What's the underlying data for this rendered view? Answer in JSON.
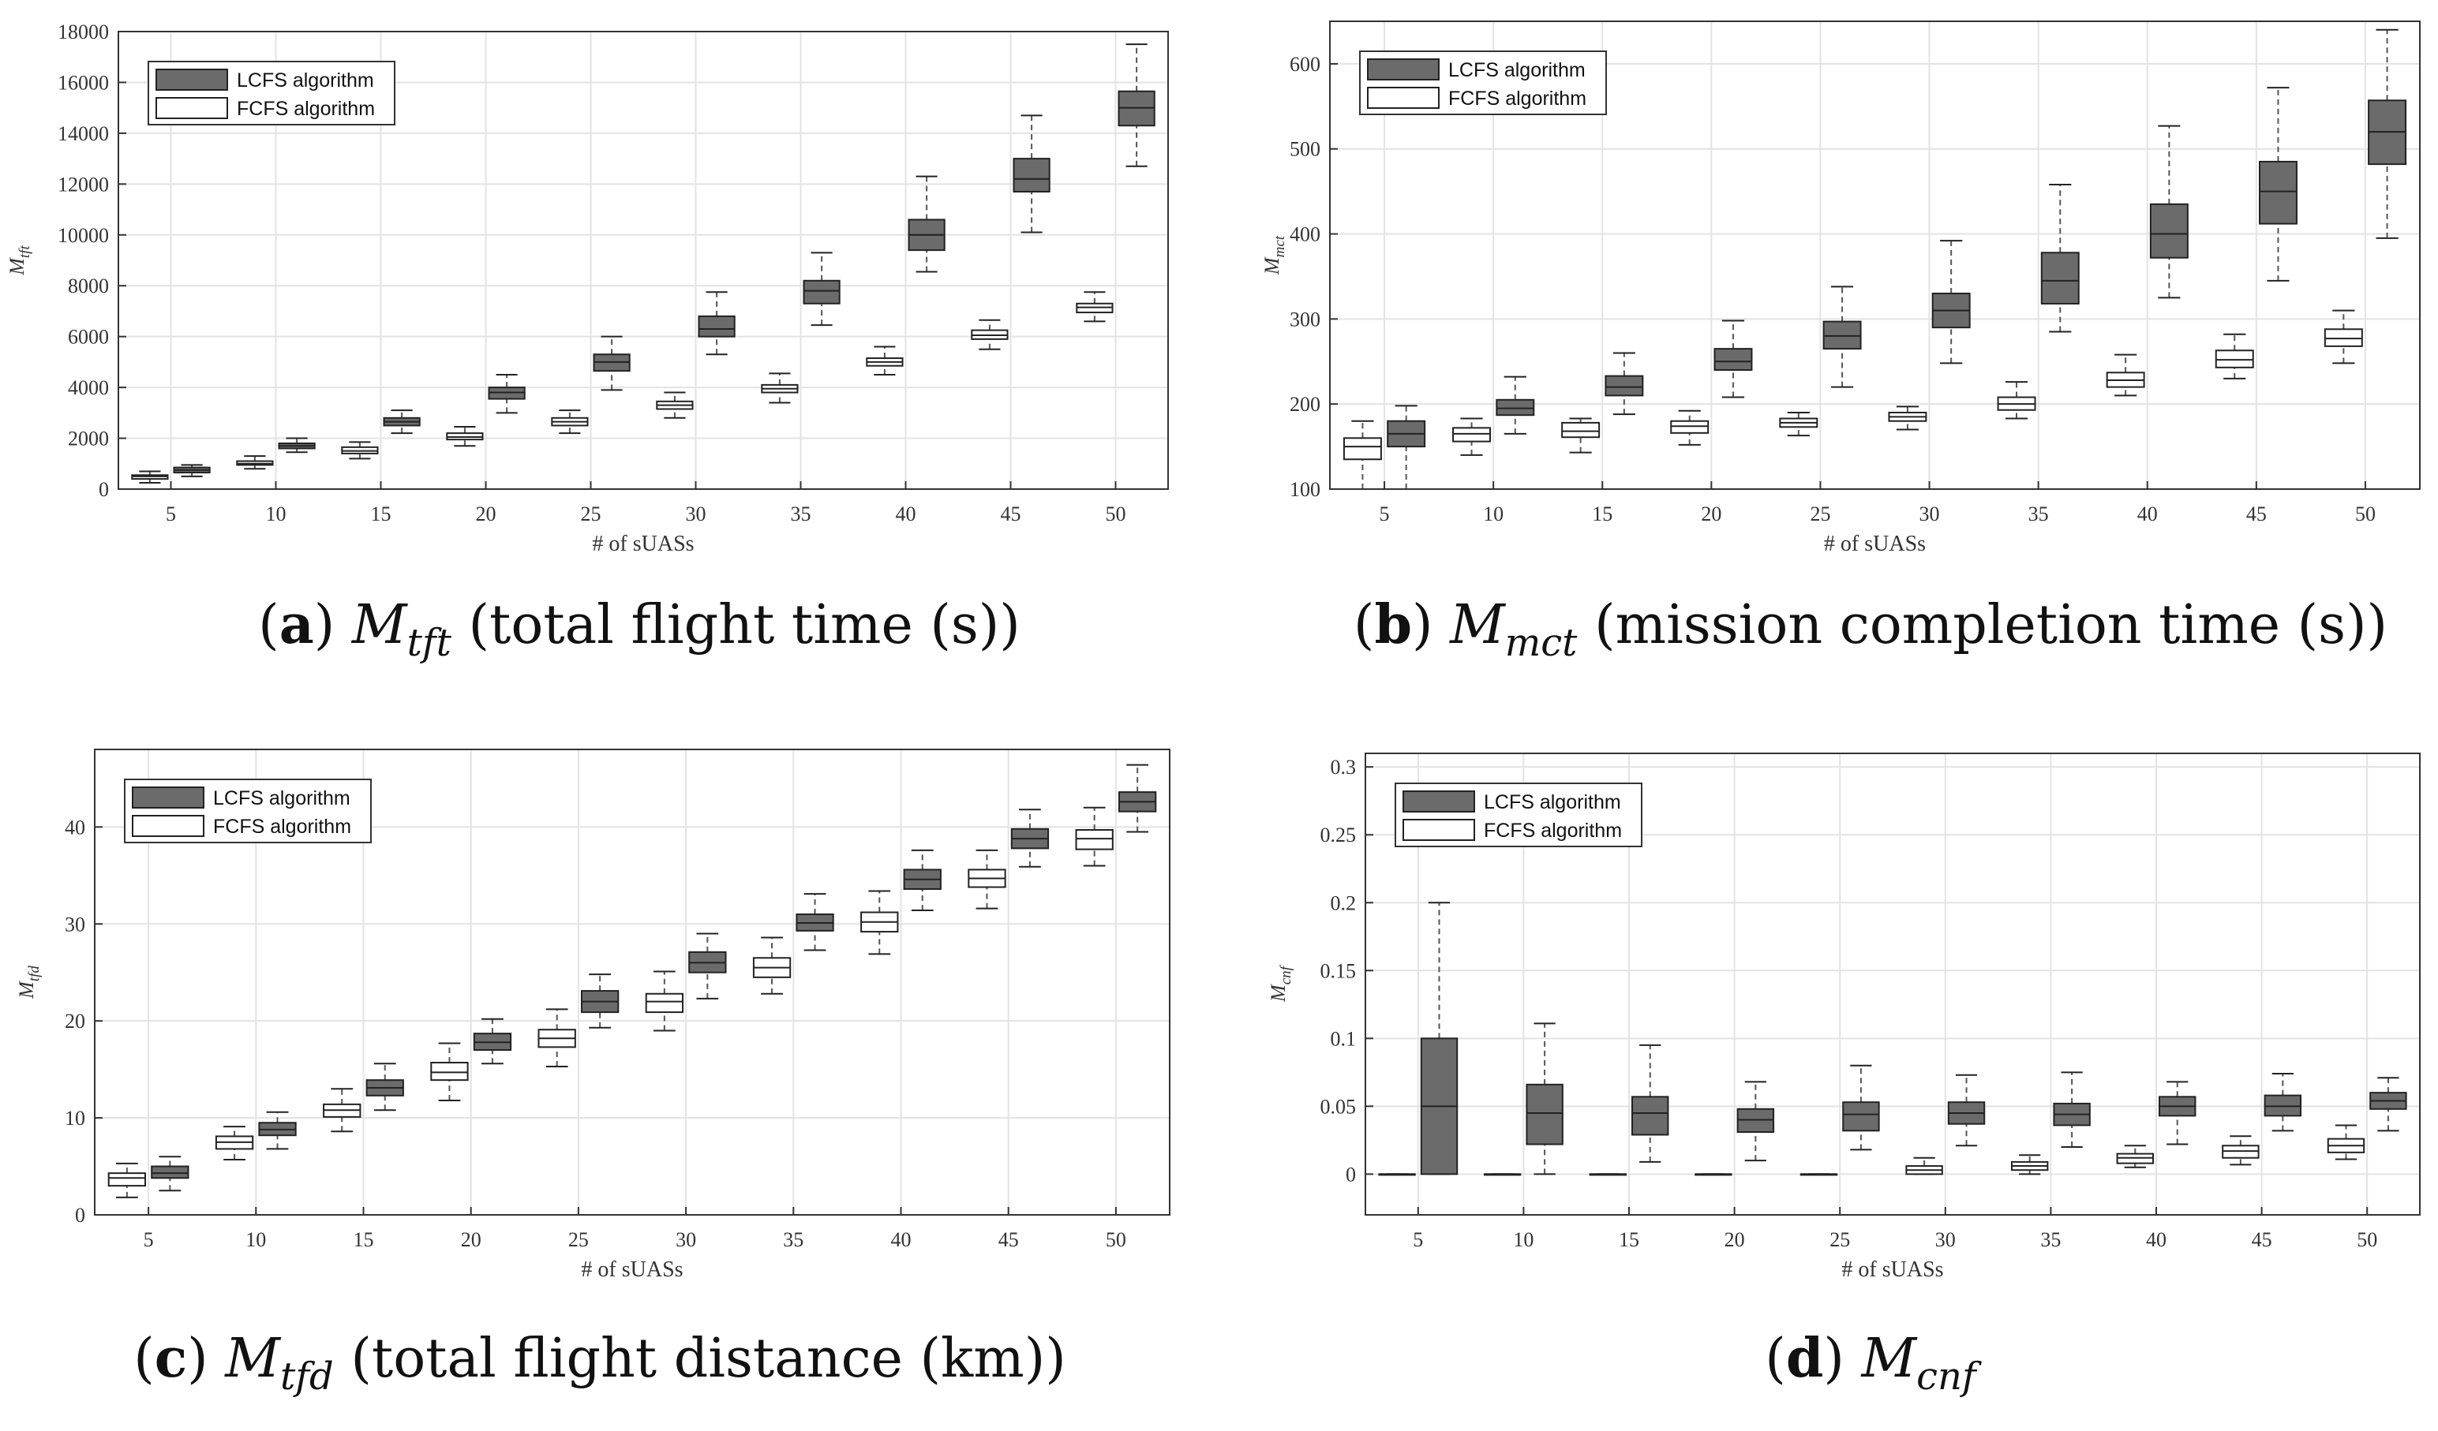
{
  "colors": {
    "lcfs": "#6b6b6b",
    "fcfs": "#ffffff",
    "grid": "#e3e3e3",
    "axis": "#333333",
    "whisker": "#555555"
  },
  "chart_data": [
    {
      "id": "a",
      "type": "boxplot",
      "xlabel": "# of sUASs",
      "ylabel": {
        "base": "M",
        "sub": "tft"
      },
      "caption": {
        "letter": "a",
        "sym": "M",
        "sub": "tft",
        "text": " (total flight time (s))"
      },
      "ylim": [
        0,
        18000
      ],
      "yticks": [
        0,
        2000,
        4000,
        6000,
        8000,
        10000,
        12000,
        14000,
        16000,
        18000
      ],
      "legend": {
        "position": "top-left",
        "entries": [
          "LCFS algorithm",
          "FCFS algorithm"
        ]
      },
      "categories": [
        "5",
        "10",
        "15",
        "20",
        "25",
        "30",
        "35",
        "40",
        "45",
        "50"
      ],
      "series": [
        {
          "name": "LCFS algorithm",
          "boxes": [
            [
              500,
              650,
              750,
              850,
              950
            ],
            [
              1450,
              1600,
              1700,
              1800,
              2000
            ],
            [
              2200,
              2500,
              2650,
              2800,
              3100
            ],
            [
              3000,
              3550,
              3800,
              4000,
              4500
            ],
            [
              3900,
              4650,
              5000,
              5300,
              6000
            ],
            [
              5300,
              6000,
              6300,
              6800,
              7750
            ],
            [
              6450,
              7300,
              7800,
              8200,
              9300
            ],
            [
              8550,
              9400,
              10000,
              10600,
              12300
            ],
            [
              10100,
              11700,
              12200,
              13000,
              14700
            ],
            [
              12700,
              14300,
              15000,
              15650,
              17500
            ]
          ]
        },
        {
          "name": "FCFS algorithm",
          "boxes": [
            [
              250,
              400,
              500,
              550,
              700
            ],
            [
              800,
              950,
              1000,
              1100,
              1300
            ],
            [
              1200,
              1400,
              1500,
              1650,
              1850
            ],
            [
              1700,
              1950,
              2050,
              2200,
              2450
            ],
            [
              2200,
              2500,
              2650,
              2800,
              3100
            ],
            [
              2800,
              3150,
              3300,
              3450,
              3800
            ],
            [
              3400,
              3800,
              3950,
              4100,
              4550
            ],
            [
              4500,
              4850,
              5000,
              5150,
              5600
            ],
            [
              5500,
              5900,
              6050,
              6250,
              6650
            ],
            [
              6600,
              6950,
              7150,
              7300,
              7750
            ]
          ]
        }
      ]
    },
    {
      "id": "b",
      "type": "boxplot",
      "xlabel": "# of sUASs",
      "ylabel": {
        "base": "M",
        "sub": "mct"
      },
      "caption": {
        "letter": "b",
        "sym": "M",
        "sub": "mct",
        "text": " (mission completion time (s))"
      },
      "ylim": [
        100,
        650
      ],
      "yticks": [
        100,
        200,
        300,
        400,
        500,
        600
      ],
      "legend": {
        "position": "top-left",
        "entries": [
          "LCFS algorithm",
          "FCFS algorithm"
        ]
      },
      "categories": [
        "5",
        "10",
        "15",
        "20",
        "25",
        "30",
        "35",
        "40",
        "45",
        "50"
      ],
      "series": [
        {
          "name": "LCFS algorithm",
          "boxes": [
            [
              100,
              150,
              165,
              180,
              198
            ],
            [
              165,
              187,
              195,
              205,
              232
            ],
            [
              188,
              210,
              220,
              233,
              260
            ],
            [
              208,
              240,
              250,
              265,
              298
            ],
            [
              220,
              265,
              280,
              297,
              338
            ],
            [
              248,
              290,
              310,
              330,
              392
            ],
            [
              285,
              318,
              345,
              378,
              458
            ],
            [
              325,
              372,
              400,
              435,
              527
            ],
            [
              345,
              412,
              450,
              485,
              572
            ],
            [
              395,
              482,
              520,
              557,
              640
            ]
          ]
        },
        {
          "name": "FCFS algorithm",
          "boxes": [
            [
              100,
              135,
              150,
              160,
              180
            ],
            [
              140,
              156,
              165,
              172,
              183
            ],
            [
              143,
              161,
              168,
              178,
              183
            ],
            [
              152,
              166,
              174,
              180,
              192
            ],
            [
              163,
              173,
              178,
              183,
              190
            ],
            [
              170,
              180,
              185,
              190,
              197
            ],
            [
              183,
              193,
              200,
              208,
              226
            ],
            [
              210,
              220,
              228,
              237,
              258
            ],
            [
              230,
              243,
              252,
              263,
              282
            ],
            [
              248,
              268,
              277,
              288,
              310
            ]
          ]
        }
      ]
    },
    {
      "id": "c",
      "type": "boxplot",
      "xlabel": "# of sUASs",
      "ylabel": {
        "base": "M",
        "sub": "tfd"
      },
      "caption": {
        "letter": "c",
        "sym": "M",
        "sub": "tfd",
        "text": " (total flight distance (km))"
      },
      "ylim": [
        0,
        48
      ],
      "yticks": [
        0,
        10,
        20,
        30,
        40
      ],
      "legend": {
        "position": "top-left",
        "entries": [
          "LCFS algorithm",
          "FCFS algorithm"
        ]
      },
      "categories": [
        "5",
        "10",
        "15",
        "20",
        "25",
        "30",
        "35",
        "40",
        "45",
        "50"
      ],
      "series": [
        {
          "name": "LCFS algorithm",
          "boxes": [
            [
              2.5,
              3.8,
              4.3,
              5.0,
              6.0
            ],
            [
              6.8,
              8.2,
              8.8,
              9.5,
              10.6
            ],
            [
              10.8,
              12.3,
              13.1,
              13.9,
              15.6
            ],
            [
              15.6,
              17.0,
              17.8,
              18.7,
              20.2
            ],
            [
              19.3,
              20.9,
              22.0,
              23.1,
              24.8
            ],
            [
              22.3,
              25.0,
              26.0,
              27.1,
              29.0
            ],
            [
              27.3,
              29.3,
              30.1,
              31.0,
              33.1
            ],
            [
              31.4,
              33.6,
              34.6,
              35.6,
              37.6
            ],
            [
              35.9,
              37.8,
              38.8,
              39.8,
              41.8
            ],
            [
              39.5,
              41.6,
              42.6,
              43.6,
              46.4
            ]
          ]
        },
        {
          "name": "FCFS algorithm",
          "boxes": [
            [
              1.8,
              3.0,
              3.8,
              4.3,
              5.3
            ],
            [
              5.7,
              6.8,
              7.5,
              8.1,
              9.1
            ],
            [
              8.6,
              10.1,
              10.8,
              11.4,
              13.0
            ],
            [
              11.8,
              13.9,
              14.7,
              15.7,
              17.7
            ],
            [
              15.3,
              17.3,
              18.2,
              19.1,
              21.2
            ],
            [
              19.0,
              20.9,
              22.0,
              22.8,
              25.1
            ],
            [
              22.8,
              24.5,
              25.5,
              26.5,
              28.6
            ],
            [
              26.9,
              29.2,
              30.2,
              31.2,
              33.4
            ],
            [
              31.6,
              33.8,
              34.7,
              35.6,
              37.6
            ],
            [
              36.0,
              37.7,
              38.8,
              39.7,
              42.0
            ]
          ]
        }
      ]
    },
    {
      "id": "d",
      "type": "boxplot",
      "xlabel": "# of sUASs",
      "ylabel": {
        "base": "M",
        "sub": "cnf"
      },
      "caption": {
        "letter": "d",
        "sym": "M",
        "sub": "cnf",
        "text": ""
      },
      "ylim": [
        -0.03,
        0.31
      ],
      "yticks": [
        0,
        0.05,
        0.1,
        0.15,
        0.2,
        0.25,
        0.3
      ],
      "legend": {
        "position": "top-left",
        "entries": [
          "LCFS algorithm",
          "FCFS algorithm"
        ]
      },
      "categories": [
        "5",
        "10",
        "15",
        "20",
        "25",
        "30",
        "35",
        "40",
        "45",
        "50"
      ],
      "series": [
        {
          "name": "LCFS algorithm",
          "boxes": [
            [
              0,
              0,
              0.05,
              0.1,
              0.2
            ],
            [
              0,
              0.022,
              0.045,
              0.066,
              0.111
            ],
            [
              0.009,
              0.029,
              0.045,
              0.057,
              0.095
            ],
            [
              0.01,
              0.031,
              0.04,
              0.048,
              0.068
            ],
            [
              0.018,
              0.032,
              0.044,
              0.053,
              0.08
            ],
            [
              0.021,
              0.037,
              0.045,
              0.053,
              0.073
            ],
            [
              0.02,
              0.036,
              0.044,
              0.052,
              0.075
            ],
            [
              0.022,
              0.043,
              0.05,
              0.057,
              0.068
            ],
            [
              0.032,
              0.043,
              0.05,
              0.058,
              0.074
            ],
            [
              0.032,
              0.048,
              0.054,
              0.06,
              0.071
            ]
          ]
        },
        {
          "name": "FCFS algorithm",
          "boxes": [
            [
              0,
              0,
              0,
              0,
              0
            ],
            [
              0,
              0,
              0,
              0,
              0
            ],
            [
              0,
              0,
              0,
              0,
              0
            ],
            [
              0,
              0,
              0,
              0,
              0
            ],
            [
              0,
              0,
              0,
              0,
              0
            ],
            [
              0,
              0,
              0.003,
              0.006,
              0.012
            ],
            [
              0,
              0.003,
              0.006,
              0.009,
              0.014
            ],
            [
              0.005,
              0.008,
              0.012,
              0.015,
              0.021
            ],
            [
              0.007,
              0.012,
              0.017,
              0.021,
              0.028
            ],
            [
              0.011,
              0.016,
              0.021,
              0.026,
              0.036
            ]
          ]
        }
      ]
    }
  ]
}
